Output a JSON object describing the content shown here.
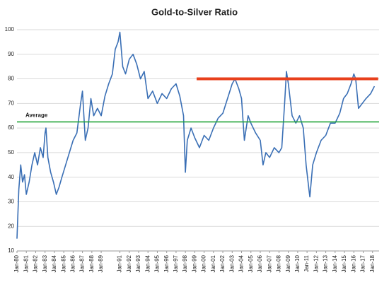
{
  "chart_data": {
    "type": "line",
    "title": "Gold-to-Silver Ratio",
    "x": [
      1980.0,
      1980.2,
      1980.4,
      1980.6,
      1980.8,
      1981.0,
      1981.3,
      1981.6,
      1981.9,
      1982.2,
      1982.5,
      1982.8,
      1983.0,
      1983.1,
      1983.3,
      1983.6,
      1983.9,
      1984.2,
      1984.5,
      1984.8,
      1985.2,
      1985.6,
      1986.0,
      1986.4,
      1986.8,
      1987.0,
      1987.3,
      1987.6,
      1987.9,
      1988.2,
      1988.6,
      1989.0,
      1989.4,
      1989.8,
      1990.2,
      1990.5,
      1990.8,
      1991.0,
      1991.3,
      1991.6,
      1992.0,
      1992.4,
      1992.8,
      1993.2,
      1993.6,
      1994.0,
      1994.5,
      1995.0,
      1995.5,
      1996.0,
      1996.5,
      1997.0,
      1997.4,
      1997.8,
      1998.0,
      1998.2,
      1998.6,
      1999.0,
      1999.5,
      2000.0,
      2000.5,
      2001.0,
      2001.5,
      2002.0,
      2002.5,
      2003.0,
      2003.3,
      2003.7,
      2004.0,
      2004.3,
      2004.7,
      2005.0,
      2005.5,
      2006.0,
      2006.3,
      2006.6,
      2007.0,
      2007.5,
      2008.0,
      2008.3,
      2008.6,
      2008.8,
      2009.0,
      2009.4,
      2009.8,
      2010.2,
      2010.6,
      2010.9,
      2011.2,
      2011.3,
      2011.6,
      2012.0,
      2012.5,
      2013.0,
      2013.5,
      2014.0,
      2014.5,
      2014.9,
      2015.3,
      2015.7,
      2016.0,
      2016.2,
      2016.5,
      2016.9,
      2017.3,
      2017.8,
      2018.2
    ],
    "series": [
      {
        "color": "#3a6fb5",
        "values": [
          15,
          35,
          45,
          38,
          41,
          33,
          38,
          45,
          50,
          45,
          52,
          48,
          58,
          60,
          48,
          42,
          38,
          33,
          36,
          40,
          45,
          50,
          55,
          58,
          70,
          75,
          55,
          60,
          72,
          65,
          68,
          65,
          73,
          78,
          82,
          92,
          95,
          99,
          85,
          82,
          88,
          90,
          86,
          80,
          83,
          72,
          75,
          70,
          74,
          72,
          76,
          78,
          73,
          65,
          42,
          55,
          60,
          56,
          52,
          57,
          55,
          60,
          64,
          66,
          72,
          78,
          80,
          76,
          72,
          55,
          65,
          62,
          58,
          55,
          45,
          50,
          48,
          52,
          50,
          52,
          70,
          83,
          78,
          65,
          62,
          65,
          60,
          45,
          35,
          32,
          45,
          50,
          55,
          57,
          62,
          62,
          66,
          72,
          74,
          78,
          82,
          80,
          68,
          70,
          72,
          74,
          77
        ]
      }
    ],
    "reference_lines": [
      {
        "value": 80,
        "color": "#e8401c",
        "x": [
          1999.2,
          2018.6
        ]
      },
      {
        "value": 62.5,
        "color": "#22a53a",
        "label": "Average"
      }
    ],
    "xlim": [
      1980,
      2018.7
    ],
    "xticks": [
      {
        "value": 1980,
        "label": "Jan-80"
      },
      {
        "value": 1981,
        "label": "Jan-81"
      },
      {
        "value": 1982,
        "label": "Jan-82"
      },
      {
        "value": 1983,
        "label": "Jan-83"
      },
      {
        "value": 1984,
        "label": "Jan-84"
      },
      {
        "value": 1985,
        "label": "Jan-85"
      },
      {
        "value": 1986,
        "label": "Jan-86"
      },
      {
        "value": 1987,
        "label": "Jan-87"
      },
      {
        "value": 1988,
        "label": "Jan-88"
      },
      {
        "value": 1989,
        "label": "Jan-89"
      },
      {
        "value": 1991,
        "label": "Jan-91"
      },
      {
        "value": 1992,
        "label": "Jan-92"
      },
      {
        "value": 1993,
        "label": "Jan-93"
      },
      {
        "value": 1994,
        "label": "Jan-94"
      },
      {
        "value": 1995,
        "label": "Jan-95"
      },
      {
        "value": 1996,
        "label": "Jan-96"
      },
      {
        "value": 1997,
        "label": "Jan-97"
      },
      {
        "value": 1998,
        "label": "Jan-98"
      },
      {
        "value": 1999,
        "label": "Jan-99"
      },
      {
        "value": 2000,
        "label": "Jan-00"
      },
      {
        "value": 2001,
        "label": "Jan-01"
      },
      {
        "value": 2002,
        "label": "Jan-02"
      },
      {
        "value": 2003,
        "label": "Jan-03"
      },
      {
        "value": 2004,
        "label": "Jan-04"
      },
      {
        "value": 2005,
        "label": "Jan-05"
      },
      {
        "value": 2006,
        "label": "Jan-06"
      },
      {
        "value": 2007,
        "label": "Jan-07"
      },
      {
        "value": 2008,
        "label": "Jan-08"
      },
      {
        "value": 2009,
        "label": "Jan-09"
      },
      {
        "value": 2010,
        "label": "Jan-10"
      },
      {
        "value": 2011,
        "label": "Jan-11"
      },
      {
        "value": 2012,
        "label": "Jan-12"
      },
      {
        "value": 2013,
        "label": "Jan-13"
      },
      {
        "value": 2014,
        "label": "Jan-14"
      },
      {
        "value": 2015,
        "label": "Jan-15"
      },
      {
        "value": 2016,
        "label": "Jan-16"
      },
      {
        "value": 2017,
        "label": "Jan-17"
      },
      {
        "value": 2018,
        "label": "Jan-18"
      }
    ],
    "ylim": [
      10,
      100
    ],
    "yticks": [
      10,
      20,
      30,
      40,
      50,
      60,
      70,
      80,
      90,
      100
    ],
    "grid": true
  }
}
